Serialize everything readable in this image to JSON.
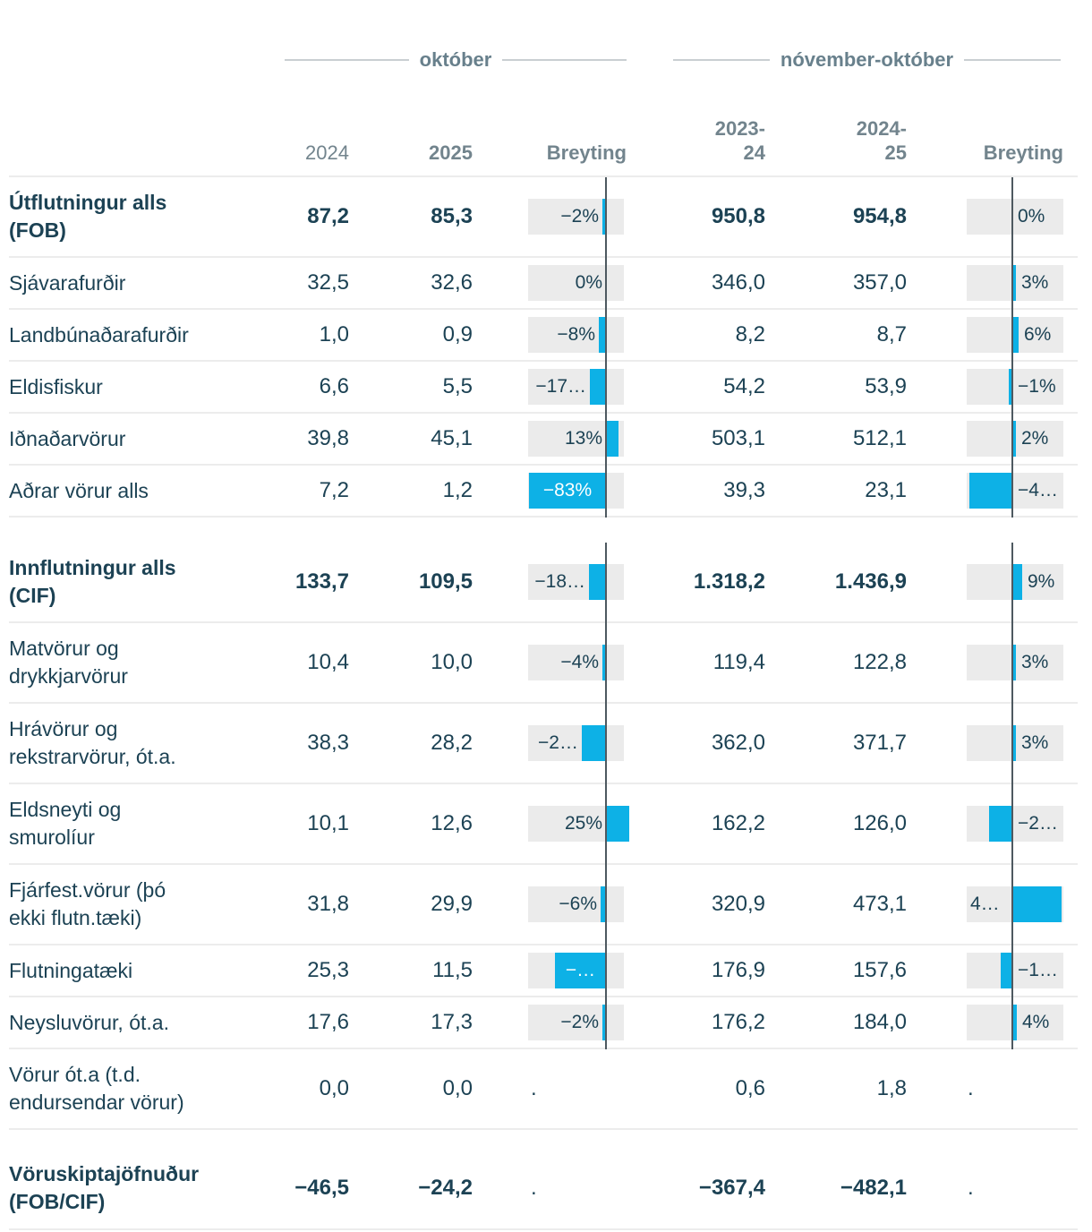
{
  "colors": {
    "accent_bar": "#0db1e6",
    "text_dark": "#1c4254",
    "header_slate": "#72848d",
    "cell_gray": "#ebebeb",
    "axis_line": "#4e5960"
  },
  "header": {
    "group1": "október",
    "group2": "nóvember-október",
    "col_2024": "2024",
    "col_2025": "2025",
    "col_breyting1": "Breyting",
    "col_2023_24": [
      "2023-",
      "24"
    ],
    "col_2024_25": [
      "2024-",
      "25"
    ],
    "col_breyting2": "Breyting"
  },
  "chart_data": {
    "type": "table",
    "title": "",
    "column_groups": [
      "október",
      "nóvember-október"
    ],
    "columns": [
      "2024",
      "2025",
      "Breyting",
      "2023-24",
      "2024-25",
      "Breyting"
    ],
    "bar_style": "diverging change bars around zero axis, cyan fill",
    "sections": [
      {
        "rows": [
          {
            "label": [
              "Útflutningur alls",
              "(FOB)"
            ],
            "bold": true,
            "m1": "87,2",
            "m2": "85,3",
            "c1": {
              "label": "−2%",
              "pct": -2
            },
            "a1": "950,8",
            "a2": "954,8",
            "c2": {
              "label": "0%",
              "pct": 0
            }
          },
          {
            "label": "Sjávarafurðir",
            "m1": "32,5",
            "m2": "32,6",
            "c1": {
              "label": "0%",
              "pct": 0
            },
            "a1": "346,0",
            "a2": "357,0",
            "c2": {
              "label": "3%",
              "pct": 3
            }
          },
          {
            "label": "Landbúnaðarafurðir",
            "m1": "1,0",
            "m2": "0,9",
            "c1": {
              "label": "−8%",
              "pct": -8
            },
            "a1": "8,2",
            "a2": "8,7",
            "c2": {
              "label": "6%",
              "pct": 6
            }
          },
          {
            "label": "Eldisfiskur",
            "m1": "6,6",
            "m2": "5,5",
            "c1": {
              "label": "−17…",
              "pct": -17
            },
            "a1": "54,2",
            "a2": "53,9",
            "c2": {
              "label": "−1%",
              "pct": -1
            }
          },
          {
            "label": "Iðnaðarvörur",
            "m1": "39,8",
            "m2": "45,1",
            "c1": {
              "label": "13%",
              "pct": 13
            },
            "a1": "503,1",
            "a2": "512,1",
            "c2": {
              "label": "2%",
              "pct": 2
            }
          },
          {
            "label": "Aðrar vörur alls",
            "m1": "7,2",
            "m2": "1,2",
            "c1": {
              "label": "−83%",
              "pct": -83,
              "inside": true
            },
            "a1": "39,3",
            "a2": "23,1",
            "c2": {
              "label": "−4…",
              "pct": -41
            }
          }
        ]
      },
      {
        "rows": [
          {
            "label": [
              "Innflutningur alls",
              "(CIF)"
            ],
            "bold": true,
            "m1": "133,7",
            "m2": "109,5",
            "c1": {
              "label": "−18…",
              "pct": -18
            },
            "a1": "1.318,2",
            "a2": "1.436,9",
            "c2": {
              "label": "9%",
              "pct": 9
            }
          },
          {
            "label": [
              "Matvörur og",
              "drykkjarvörur"
            ],
            "m1": "10,4",
            "m2": "10,0",
            "c1": {
              "label": "−4%",
              "pct": -4
            },
            "a1": "119,4",
            "a2": "122,8",
            "c2": {
              "label": "3%",
              "pct": 3
            }
          },
          {
            "label": [
              "Hrávörur og",
              "rekstrarvörur, ót.a."
            ],
            "m1": "38,3",
            "m2": "28,2",
            "c1": {
              "label": "−2…",
              "pct": -26
            },
            "a1": "362,0",
            "a2": "371,7",
            "c2": {
              "label": "3%",
              "pct": 3
            }
          },
          {
            "label": [
              "Eldsneyti og",
              "smurolíur"
            ],
            "m1": "10,1",
            "m2": "12,6",
            "c1": {
              "label": "25%",
              "pct": 25
            },
            "a1": "162,2",
            "a2": "126,0",
            "c2": {
              "label": "−2…",
              "pct": -22
            }
          },
          {
            "label": [
              "Fjárfest.vörur (þó",
              "ekki flutn.tæki)"
            ],
            "m1": "31,8",
            "m2": "29,9",
            "c1": {
              "label": "−6%",
              "pct": -6
            },
            "a1": "320,9",
            "a2": "473,1",
            "c2": {
              "label": "4…",
              "pct": 47,
              "side": "left"
            }
          },
          {
            "label": "Flutningatæki",
            "m1": "25,3",
            "m2": "11,5",
            "c1": {
              "label": "−…",
              "pct": -55,
              "inside": true
            },
            "a1": "176,9",
            "a2": "157,6",
            "c2": {
              "label": "−1…",
              "pct": -11
            }
          },
          {
            "label": "Neysluvörur, ót.a.",
            "m1": "17,6",
            "m2": "17,3",
            "c1": {
              "label": "−2%",
              "pct": -2
            },
            "a1": "176,2",
            "a2": "184,0",
            "c2": {
              "label": "4%",
              "pct": 4
            }
          },
          {
            "label": [
              "Vörur ót.a (t.d.",
              "endursendar vörur)"
            ],
            "m1": "0,0",
            "m2": "0,0",
            "c1": {
              "label": ".",
              "pct": null
            },
            "a1": "0,6",
            "a2": "1,8",
            "c2": {
              "label": ".",
              "pct": null
            },
            "axis": false
          }
        ]
      },
      {
        "rows": [
          {
            "label": [
              "Vöruskiptajöfnuður",
              "(FOB/CIF)"
            ],
            "bold": true,
            "m1": "−46,5",
            "m2": "−24,2",
            "c1": {
              "label": ".",
              "pct": null
            },
            "a1": "−367,4",
            "a2": "−482,1",
            "c2": {
              "label": ".",
              "pct": null
            },
            "axis": false
          }
        ]
      }
    ]
  }
}
